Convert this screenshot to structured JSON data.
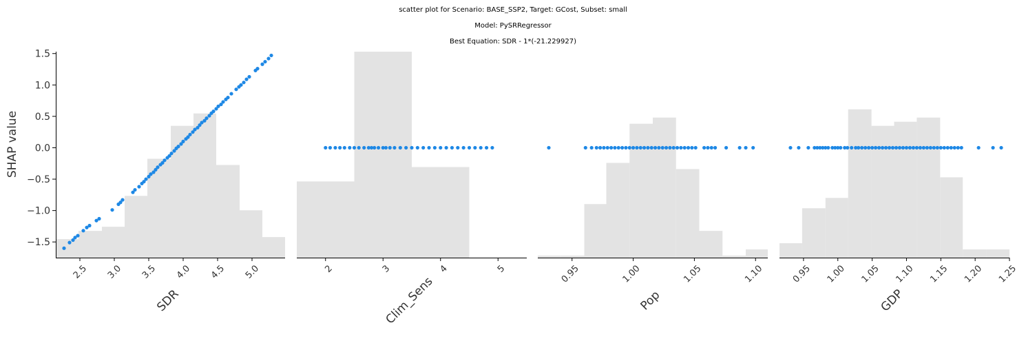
{
  "figure": {
    "title_lines": [
      "scatter plot for Scenario: BASE_SSP2, Target: GCost, Subset: small",
      "Model: PySRRegressor",
      "Best Equation: SDR - 1*(-21.229927)"
    ]
  },
  "colors": {
    "points": "#1e88e5",
    "histogram": "#e3e3e3",
    "axis": "#000000"
  },
  "chart_data": [
    {
      "type": "scatter",
      "xlabel": "SDR",
      "ylabel": "SHAP value",
      "xlim": [
        2.15,
        5.48
      ],
      "ylim": [
        -1.75,
        1.53
      ],
      "xticks": [
        2.5,
        3.0,
        3.5,
        4.0,
        4.5,
        5.0
      ],
      "xtick_labels": [
        "2.5",
        "3.0",
        "3.5",
        "4.0",
        "4.5",
        "5.0"
      ],
      "yticks": [
        -1.5,
        -1.0,
        -0.5,
        0.0,
        0.5,
        1.0,
        1.5
      ],
      "ytick_labels": [
        "−1.5",
        "−1.0",
        "−0.5",
        "0.0",
        "0.5",
        "1.0",
        "1.5"
      ],
      "x": [
        2.27,
        2.35,
        2.4,
        2.43,
        2.47,
        2.55,
        2.6,
        2.64,
        2.74,
        2.78,
        2.97,
        3.06,
        3.09,
        3.12,
        3.27,
        3.3,
        3.36,
        3.4,
        3.43,
        3.46,
        3.5,
        3.53,
        3.57,
        3.6,
        3.63,
        3.67,
        3.7,
        3.73,
        3.77,
        3.8,
        3.83,
        3.87,
        3.9,
        3.93,
        3.97,
        4.0,
        4.04,
        4.07,
        4.1,
        4.14,
        4.17,
        4.21,
        4.24,
        4.27,
        4.31,
        4.34,
        4.38,
        4.41,
        4.44,
        4.48,
        4.51,
        4.55,
        4.58,
        4.62,
        4.65,
        4.7,
        4.77,
        4.81,
        4.84,
        4.88,
        4.92,
        4.96,
        5.05,
        5.08,
        5.15,
        5.19,
        5.24,
        5.28
      ],
      "y": [
        -1.6,
        -1.51,
        -1.47,
        -1.43,
        -1.4,
        -1.32,
        -1.27,
        -1.24,
        -1.16,
        -1.13,
        -0.99,
        -0.9,
        -0.87,
        -0.83,
        -0.71,
        -0.67,
        -0.62,
        -0.57,
        -0.54,
        -0.5,
        -0.46,
        -0.42,
        -0.39,
        -0.35,
        -0.31,
        -0.27,
        -0.24,
        -0.2,
        -0.16,
        -0.13,
        -0.09,
        -0.05,
        -0.01,
        0.02,
        0.06,
        0.1,
        0.14,
        0.17,
        0.21,
        0.25,
        0.29,
        0.32,
        0.36,
        0.4,
        0.43,
        0.47,
        0.51,
        0.55,
        0.58,
        0.62,
        0.66,
        0.69,
        0.73,
        0.77,
        0.8,
        0.86,
        0.93,
        0.97,
        1.0,
        1.04,
        1.09,
        1.13,
        1.23,
        1.26,
        1.33,
        1.37,
        1.42,
        1.47
      ],
      "histogram": {
        "bin_edges": [
          2.15,
          2.48,
          2.82,
          3.15,
          3.48,
          3.82,
          4.15,
          4.48,
          4.82,
          5.15,
          5.48
        ],
        "relative_heights": [
          0.09,
          0.13,
          0.15,
          0.3,
          0.48,
          0.64,
          0.7,
          0.45,
          0.23,
          0.1
        ]
      }
    },
    {
      "type": "scatter",
      "xlabel": "Clim_Sens",
      "ylabel": "",
      "xlim": [
        1.5,
        5.5
      ],
      "ylim": [
        -1.75,
        1.53
      ],
      "xticks": [
        2,
        3,
        4,
        5
      ],
      "xtick_labels": [
        "2",
        "3",
        "4",
        "5"
      ],
      "x": [
        2.0,
        2.08,
        2.17,
        2.25,
        2.33,
        2.42,
        2.5,
        2.58,
        2.67,
        2.75,
        2.8,
        2.85,
        2.92,
        3.0,
        3.05,
        3.12,
        3.2,
        3.3,
        3.4,
        3.5,
        3.6,
        3.7,
        3.8,
        3.9,
        4.0,
        4.1,
        4.2,
        4.3,
        4.4,
        4.5,
        4.6,
        4.7,
        4.8,
        4.9
      ],
      "y": [
        0,
        0,
        0,
        0,
        0,
        0,
        0,
        0,
        0,
        0,
        0,
        0,
        0,
        0,
        0,
        0,
        0,
        0,
        0,
        0,
        0,
        0,
        0,
        0,
        0,
        0,
        0,
        0,
        0,
        0,
        0,
        0,
        0,
        0
      ],
      "histogram": {
        "bin_edges": [
          1.5,
          2.5,
          3.5,
          4.5,
          5.5
        ],
        "relative_heights": [
          0.37,
          1.0,
          0.44,
          0.0
        ]
      }
    },
    {
      "type": "scatter",
      "xlabel": "Pop",
      "ylabel": "",
      "xlim": [
        0.922,
        1.11
      ],
      "ylim": [
        -1.75,
        1.53
      ],
      "xticks": [
        0.95,
        1.0,
        1.05,
        1.1
      ],
      "xtick_labels": [
        "0.95",
        "1.00",
        "1.05",
        "1.10"
      ],
      "x": [
        0.931,
        0.961,
        0.966,
        0.97,
        0.973,
        0.976,
        0.979,
        0.982,
        0.985,
        0.988,
        0.991,
        0.994,
        0.997,
        1.0,
        1.003,
        1.006,
        1.009,
        1.012,
        1.015,
        1.018,
        1.021,
        1.024,
        1.027,
        1.03,
        1.033,
        1.036,
        1.039,
        1.042,
        1.045,
        1.048,
        1.051,
        1.058,
        1.061,
        1.064,
        1.067,
        1.076,
        1.087,
        1.092,
        1.098
      ],
      "y": [
        0,
        0,
        0,
        0,
        0,
        0,
        0,
        0,
        0,
        0,
        0,
        0,
        0,
        0,
        0,
        0,
        0,
        0,
        0,
        0,
        0,
        0,
        0,
        0,
        0,
        0,
        0,
        0,
        0,
        0,
        0,
        0,
        0,
        0,
        0,
        0,
        0,
        0,
        0
      ],
      "histogram": {
        "bin_edges": [
          0.922,
          0.941,
          0.96,
          0.978,
          0.997,
          1.016,
          1.035,
          1.054,
          1.073,
          1.092,
          1.11
        ],
        "relative_heights": [
          0.01,
          0.01,
          0.26,
          0.46,
          0.65,
          0.68,
          0.43,
          0.13,
          0.01,
          0.04
        ]
      }
    },
    {
      "type": "scatter",
      "xlabel": "GDP",
      "ylabel": "",
      "xlim": [
        0.915,
        1.25
      ],
      "ylim": [
        -1.75,
        1.53
      ],
      "xticks": [
        0.95,
        1.0,
        1.05,
        1.1,
        1.15,
        1.2,
        1.25
      ],
      "xtick_labels": [
        "0.95",
        "1.00",
        "1.05",
        "1.10",
        "1.15",
        "1.20",
        "1.25"
      ],
      "x": [
        0.931,
        0.943,
        0.957,
        0.966,
        0.97,
        0.974,
        0.978,
        0.982,
        0.986,
        0.992,
        0.996,
        1.0,
        1.004,
        1.01,
        1.014,
        1.02,
        1.026,
        1.03,
        1.035,
        1.04,
        1.045,
        1.05,
        1.055,
        1.06,
        1.065,
        1.07,
        1.075,
        1.08,
        1.085,
        1.09,
        1.095,
        1.1,
        1.105,
        1.11,
        1.115,
        1.12,
        1.125,
        1.13,
        1.135,
        1.14,
        1.145,
        1.15,
        1.155,
        1.16,
        1.165,
        1.17,
        1.175,
        1.18,
        1.205,
        1.226,
        1.238
      ],
      "y": [
        0,
        0,
        0,
        0,
        0,
        0,
        0,
        0,
        0,
        0,
        0,
        0,
        0,
        0,
        0,
        0,
        0,
        0,
        0,
        0,
        0,
        0,
        0,
        0,
        0,
        0,
        0,
        0,
        0,
        0,
        0,
        0,
        0,
        0,
        0,
        0,
        0,
        0,
        0,
        0,
        0,
        0,
        0,
        0,
        0,
        0,
        0,
        0,
        0,
        0,
        0
      ],
      "histogram": {
        "bin_edges": [
          0.915,
          0.948,
          0.982,
          1.015,
          1.049,
          1.082,
          1.115,
          1.149,
          1.182,
          1.216,
          1.25
        ],
        "relative_heights": [
          0.07,
          0.24,
          0.29,
          0.72,
          0.64,
          0.66,
          0.68,
          0.39,
          0.04,
          0.04
        ]
      }
    }
  ]
}
